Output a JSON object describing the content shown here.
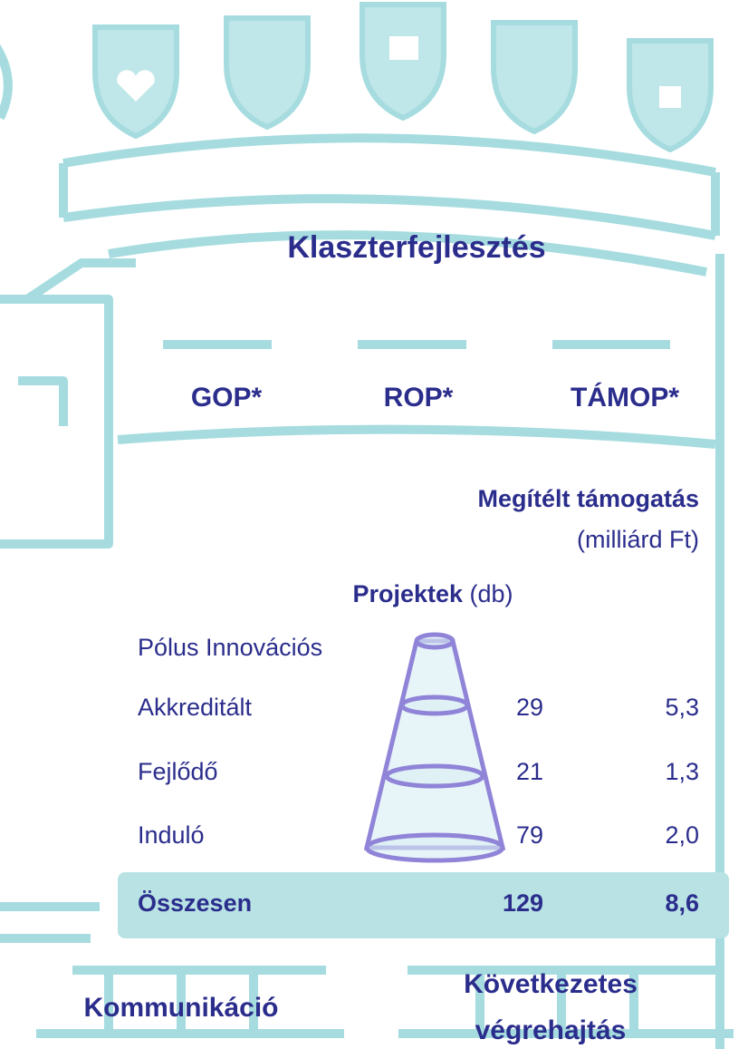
{
  "title": "Klaszterfejlesztés",
  "programs": [
    "GOP*",
    "ROP*",
    "TÁMOP*"
  ],
  "table": {
    "support_header": "Megítélt támogatás",
    "support_unit": "(milliárd Ft)",
    "projects_header": "Projektek",
    "projects_unit": "(db)",
    "rows": [
      [
        "Pólus Innovációs"
      ],
      [
        "Akkreditált",
        29,
        "5,3"
      ],
      [
        "Fejlődő",
        21,
        "1,3"
      ],
      [
        "Induló",
        79,
        "2,0"
      ]
    ],
    "total": [
      "Összesen",
      129,
      "8,6"
    ]
  },
  "footer": {
    "left": "Kommunikáció",
    "right": [
      "Következetes",
      "végrehajtás"
    ]
  }
}
